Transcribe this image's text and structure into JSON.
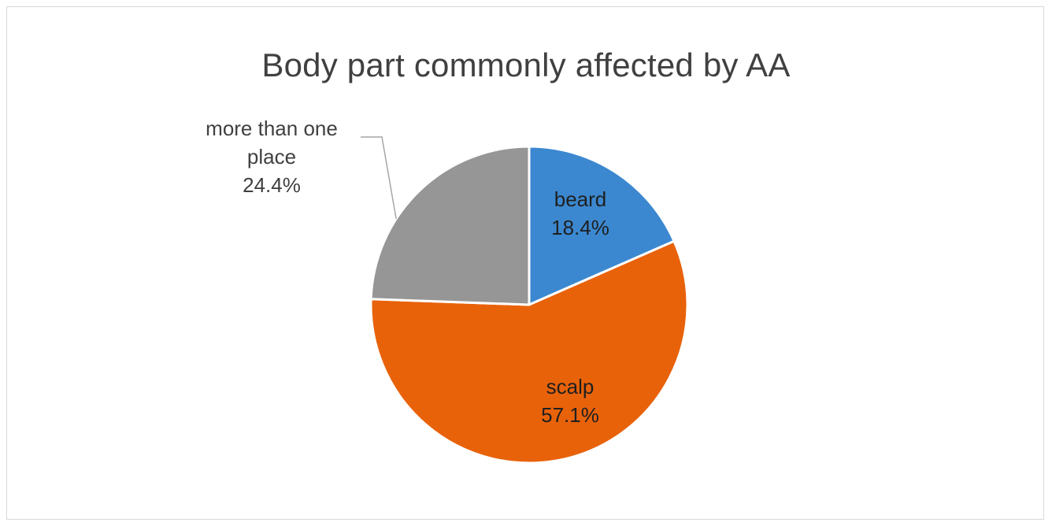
{
  "chart_data": {
    "type": "pie",
    "title": "Body part commonly affected by AA",
    "slices": [
      {
        "name": "beard",
        "value": 18.4,
        "value_label": "18.4%",
        "color": "#3b88d0"
      },
      {
        "name": "scalp",
        "value": 57.1,
        "value_label": "57.1%",
        "color": "#e8620a"
      },
      {
        "name": "more than one place",
        "name_lines": [
          "more than one",
          "place"
        ],
        "value": 24.4,
        "value_label": "24.4%",
        "color": "#969696"
      }
    ],
    "label_color": "#404040",
    "leader_line_color": "#a6a6a6"
  }
}
